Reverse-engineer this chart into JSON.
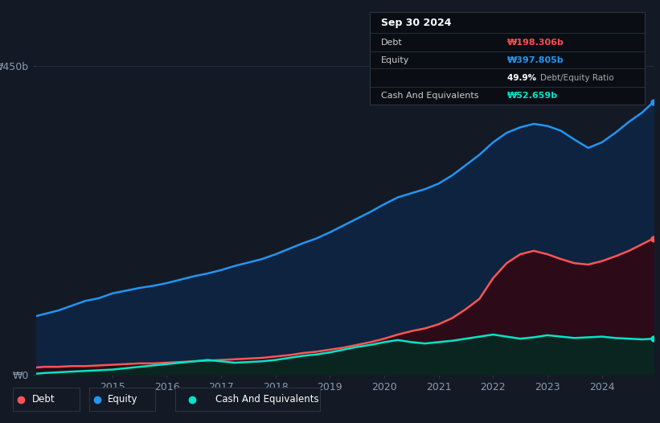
{
  "background_color": "#131a25",
  "plot_bg_color": "#131a25",
  "grid_color": "#1e2d3d",
  "title_box": {
    "date": "Sep 30 2024",
    "debt_label": "Debt",
    "debt_value": "₩198.306b",
    "debt_color": "#ff4d4d",
    "equity_label": "Equity",
    "equity_value": "₩397.805b",
    "equity_color": "#2196f3",
    "ratio_value": "49.9%",
    "ratio_label": "Debt/Equity Ratio",
    "ratio_color_pct": "#ffffff",
    "ratio_color_text": "#aaaaaa",
    "cash_label": "Cash And Equivalents",
    "cash_value": "₩52.659b",
    "cash_color": "#00e5c8",
    "box_bg": "#0a0e14",
    "box_border": "#2a3440"
  },
  "ylim": [
    0,
    450
  ],
  "yticks": [
    0,
    450
  ],
  "ytick_labels": [
    "₩0",
    "₩450b"
  ],
  "x_start_year": 2013.6,
  "x_end_year": 2024.95,
  "xtick_years": [
    2015,
    2016,
    2017,
    2018,
    2019,
    2020,
    2021,
    2022,
    2023,
    2024
  ],
  "line_colors": {
    "debt": "#ff5555",
    "equity": "#2196f3",
    "cash": "#00e5c8"
  },
  "fill_colors": {
    "equity": "#0d2340",
    "debt": "#2d0a18",
    "cash": "#0a2520"
  },
  "legend": [
    {
      "label": "Debt",
      "color": "#ff5555"
    },
    {
      "label": "Equity",
      "color": "#2196f3"
    },
    {
      "label": "Cash And Equivalents",
      "color": "#00e5c8"
    }
  ],
  "equity_data": [
    [
      2013.6,
      85
    ],
    [
      2013.75,
      88
    ],
    [
      2014.0,
      93
    ],
    [
      2014.25,
      100
    ],
    [
      2014.5,
      107
    ],
    [
      2014.75,
      111
    ],
    [
      2015.0,
      118
    ],
    [
      2015.25,
      122
    ],
    [
      2015.5,
      126
    ],
    [
      2015.75,
      129
    ],
    [
      2016.0,
      133
    ],
    [
      2016.25,
      138
    ],
    [
      2016.5,
      143
    ],
    [
      2016.75,
      147
    ],
    [
      2017.0,
      152
    ],
    [
      2017.25,
      158
    ],
    [
      2017.5,
      163
    ],
    [
      2017.75,
      168
    ],
    [
      2018.0,
      175
    ],
    [
      2018.25,
      183
    ],
    [
      2018.5,
      191
    ],
    [
      2018.75,
      198
    ],
    [
      2019.0,
      207
    ],
    [
      2019.25,
      217
    ],
    [
      2019.5,
      227
    ],
    [
      2019.75,
      237
    ],
    [
      2020.0,
      248
    ],
    [
      2020.25,
      258
    ],
    [
      2020.5,
      264
    ],
    [
      2020.75,
      270
    ],
    [
      2021.0,
      278
    ],
    [
      2021.25,
      290
    ],
    [
      2021.5,
      305
    ],
    [
      2021.75,
      320
    ],
    [
      2022.0,
      338
    ],
    [
      2022.25,
      352
    ],
    [
      2022.5,
      360
    ],
    [
      2022.75,
      365
    ],
    [
      2023.0,
      362
    ],
    [
      2023.25,
      355
    ],
    [
      2023.5,
      342
    ],
    [
      2023.75,
      330
    ],
    [
      2024.0,
      338
    ],
    [
      2024.25,
      352
    ],
    [
      2024.5,
      368
    ],
    [
      2024.75,
      382
    ],
    [
      2024.95,
      397
    ]
  ],
  "debt_data": [
    [
      2013.6,
      10
    ],
    [
      2013.75,
      11
    ],
    [
      2014.0,
      11
    ],
    [
      2014.25,
      12
    ],
    [
      2014.5,
      12
    ],
    [
      2014.75,
      13
    ],
    [
      2015.0,
      14
    ],
    [
      2015.25,
      15
    ],
    [
      2015.5,
      16
    ],
    [
      2015.75,
      16
    ],
    [
      2016.0,
      17
    ],
    [
      2016.25,
      18
    ],
    [
      2016.5,
      19
    ],
    [
      2016.75,
      20
    ],
    [
      2017.0,
      21
    ],
    [
      2017.25,
      22
    ],
    [
      2017.5,
      23
    ],
    [
      2017.75,
      24
    ],
    [
      2018.0,
      26
    ],
    [
      2018.25,
      28
    ],
    [
      2018.5,
      31
    ],
    [
      2018.75,
      33
    ],
    [
      2019.0,
      36
    ],
    [
      2019.25,
      39
    ],
    [
      2019.5,
      43
    ],
    [
      2019.75,
      47
    ],
    [
      2020.0,
      52
    ],
    [
      2020.25,
      58
    ],
    [
      2020.5,
      63
    ],
    [
      2020.75,
      67
    ],
    [
      2021.0,
      73
    ],
    [
      2021.25,
      82
    ],
    [
      2021.5,
      95
    ],
    [
      2021.75,
      110
    ],
    [
      2022.0,
      140
    ],
    [
      2022.25,
      162
    ],
    [
      2022.5,
      175
    ],
    [
      2022.75,
      180
    ],
    [
      2023.0,
      175
    ],
    [
      2023.25,
      168
    ],
    [
      2023.5,
      162
    ],
    [
      2023.75,
      160
    ],
    [
      2024.0,
      165
    ],
    [
      2024.25,
      172
    ],
    [
      2024.5,
      180
    ],
    [
      2024.75,
      190
    ],
    [
      2024.95,
      198
    ]
  ],
  "cash_data": [
    [
      2013.6,
      1
    ],
    [
      2013.75,
      2
    ],
    [
      2014.0,
      3
    ],
    [
      2014.25,
      4
    ],
    [
      2014.5,
      5
    ],
    [
      2014.75,
      6
    ],
    [
      2015.0,
      7
    ],
    [
      2015.25,
      9
    ],
    [
      2015.5,
      11
    ],
    [
      2015.75,
      13
    ],
    [
      2016.0,
      15
    ],
    [
      2016.25,
      17
    ],
    [
      2016.5,
      19
    ],
    [
      2016.75,
      21
    ],
    [
      2017.0,
      19
    ],
    [
      2017.25,
      17
    ],
    [
      2017.5,
      18
    ],
    [
      2017.75,
      19
    ],
    [
      2018.0,
      21
    ],
    [
      2018.25,
      24
    ],
    [
      2018.5,
      27
    ],
    [
      2018.75,
      29
    ],
    [
      2019.0,
      32
    ],
    [
      2019.25,
      36
    ],
    [
      2019.5,
      40
    ],
    [
      2019.75,
      43
    ],
    [
      2020.0,
      47
    ],
    [
      2020.25,
      50
    ],
    [
      2020.5,
      47
    ],
    [
      2020.75,
      45
    ],
    [
      2021.0,
      47
    ],
    [
      2021.25,
      49
    ],
    [
      2021.5,
      52
    ],
    [
      2021.75,
      55
    ],
    [
      2022.0,
      58
    ],
    [
      2022.25,
      55
    ],
    [
      2022.5,
      52
    ],
    [
      2022.75,
      54
    ],
    [
      2023.0,
      57
    ],
    [
      2023.25,
      55
    ],
    [
      2023.5,
      53
    ],
    [
      2023.75,
      54
    ],
    [
      2024.0,
      55
    ],
    [
      2024.25,
      53
    ],
    [
      2024.5,
      52
    ],
    [
      2024.75,
      51
    ],
    [
      2024.95,
      52
    ]
  ]
}
